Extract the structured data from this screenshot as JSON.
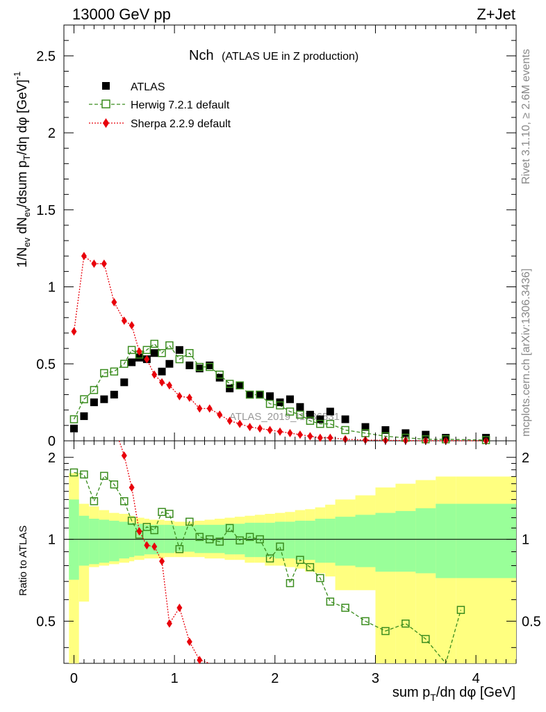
{
  "header": {
    "left": "13000 GeV pp",
    "right": "Z+Jet"
  },
  "plot_title": {
    "main": "Nch",
    "sub": "(ATLAS UE in Z production)"
  },
  "side_labels": {
    "top": "Rivet 3.1.10, ≥ 2.6M events",
    "bottom": "mcplots.cern.ch [arXiv:1306.3436]"
  },
  "watermark": "ATLAS_2019_I1736531",
  "axes": {
    "ylabel_main": "1/N_ev dN_ev/dsum p_T/dη dφ [GeV]^-1",
    "ylabel_ratio": "Ratio to ATLAS",
    "xlabel": "sum p_T/dη dφ [GeV]",
    "x_ticks": [
      "0",
      "1",
      "2",
      "3",
      "4"
    ],
    "y_ticks_main": [
      "0",
      "0.5",
      "1",
      "1.5",
      "2",
      "2.5"
    ],
    "y_ticks_ratio": [
      "0.5",
      "1",
      "2"
    ]
  },
  "legend": {
    "atlas": "ATLAS",
    "herwig": "Herwig 7.2.1 default",
    "sherpa": "Sherpa 2.2.9 default"
  },
  "colors": {
    "atlas": "#000000",
    "herwig": "#3a8c1e",
    "sherpa": "#e8000b",
    "band_inner": "#99ff99",
    "band_outer": "#ffff80"
  },
  "chart_data": [
    {
      "type": "scatter",
      "panel": "main",
      "xlim": [
        -0.1,
        4.4
      ],
      "ylim": [
        0,
        2.7
      ],
      "series": [
        {
          "name": "ATLAS",
          "x": [
            0.0,
            0.1,
            0.2,
            0.3,
            0.4,
            0.5,
            0.575,
            0.65,
            0.725,
            0.8,
            0.875,
            0.95,
            1.05,
            1.15,
            1.25,
            1.35,
            1.45,
            1.55,
            1.65,
            1.75,
            1.85,
            1.95,
            2.05,
            2.15,
            2.25,
            2.35,
            2.45,
            2.55,
            2.7,
            2.9,
            3.1,
            3.3,
            3.5,
            3.7,
            4.1
          ],
          "y": [
            0.08,
            0.16,
            0.25,
            0.27,
            0.3,
            0.38,
            0.51,
            0.54,
            0.53,
            0.57,
            0.45,
            0.5,
            0.59,
            0.49,
            0.47,
            0.49,
            0.41,
            0.34,
            0.36,
            0.3,
            0.3,
            0.29,
            0.25,
            0.27,
            0.22,
            0.17,
            0.14,
            0.19,
            0.14,
            0.09,
            0.07,
            0.05,
            0.04,
            0.02,
            0.02
          ]
        },
        {
          "name": "Herwig 7.2.1 default",
          "x": [
            0.0,
            0.1,
            0.2,
            0.3,
            0.4,
            0.5,
            0.575,
            0.65,
            0.725,
            0.8,
            0.875,
            0.95,
            1.05,
            1.15,
            1.25,
            1.35,
            1.45,
            1.55,
            1.65,
            1.75,
            1.85,
            1.95,
            2.05,
            2.15,
            2.25,
            2.35,
            2.45,
            2.55,
            2.7,
            2.9,
            3.1,
            3.3,
            3.5,
            3.7,
            4.1
          ],
          "y": [
            0.14,
            0.27,
            0.33,
            0.44,
            0.45,
            0.5,
            0.59,
            0.56,
            0.59,
            0.63,
            0.57,
            0.62,
            0.53,
            0.57,
            0.48,
            0.48,
            0.43,
            0.37,
            0.36,
            0.3,
            0.3,
            0.24,
            0.23,
            0.19,
            0.17,
            0.13,
            0.11,
            0.11,
            0.07,
            0.05,
            0.03,
            0.02,
            0.01,
            0.01,
            0.005
          ]
        },
        {
          "name": "Sherpa 2.2.9 default",
          "x": [
            0.0,
            0.1,
            0.2,
            0.3,
            0.4,
            0.5,
            0.575,
            0.65,
            0.725,
            0.8,
            0.875,
            0.95,
            1.05,
            1.15,
            1.25,
            1.35,
            1.45,
            1.55,
            1.65,
            1.75,
            1.85,
            1.95,
            2.05,
            2.15,
            2.25,
            2.35,
            2.45,
            2.55,
            2.7,
            2.9,
            3.1,
            3.3,
            3.5,
            3.7,
            4.1
          ],
          "y": [
            0.71,
            1.2,
            1.15,
            1.15,
            0.9,
            0.78,
            0.75,
            0.58,
            0.53,
            0.43,
            0.38,
            0.36,
            0.29,
            0.28,
            0.21,
            0.21,
            0.17,
            0.13,
            0.11,
            0.09,
            0.08,
            0.07,
            0.06,
            0.05,
            0.04,
            0.03,
            0.02,
            0.02,
            0.01,
            0.005,
            0.003,
            0.002,
            0.001,
            0.001,
            0.0005
          ]
        }
      ]
    },
    {
      "type": "line",
      "panel": "ratio",
      "xlim": [
        -0.1,
        4.4
      ],
      "ylim": [
        0.35,
        2.3
      ],
      "y_scale": "log",
      "bands": {
        "x_edges": [
          -0.05,
          0.05,
          0.15,
          0.25,
          0.35,
          0.45,
          0.55,
          0.6,
          0.7,
          0.75,
          0.85,
          0.9,
          1.0,
          1.1,
          1.2,
          1.3,
          1.4,
          1.5,
          1.6,
          1.7,
          1.8,
          1.9,
          2.0,
          2.1,
          2.2,
          2.3,
          2.4,
          2.5,
          2.6,
          2.8,
          3.0,
          3.2,
          3.4,
          3.6,
          3.8,
          4.4
        ],
        "inner_low": [
          0.71,
          0.8,
          0.81,
          0.82,
          0.83,
          0.85,
          0.86,
          0.87,
          0.88,
          0.88,
          0.89,
          0.89,
          0.9,
          0.9,
          0.89,
          0.89,
          0.89,
          0.88,
          0.88,
          0.86,
          0.86,
          0.86,
          0.85,
          0.85,
          0.84,
          0.84,
          0.82,
          0.82,
          0.8,
          0.79,
          0.76,
          0.76,
          0.75,
          0.72,
          0.72
        ],
        "inner_high": [
          1.4,
          1.22,
          1.19,
          1.18,
          1.17,
          1.16,
          1.15,
          1.14,
          1.13,
          1.13,
          1.13,
          1.13,
          1.12,
          1.12,
          1.13,
          1.13,
          1.13,
          1.14,
          1.14,
          1.15,
          1.15,
          1.15,
          1.16,
          1.16,
          1.17,
          1.17,
          1.19,
          1.19,
          1.21,
          1.23,
          1.25,
          1.27,
          1.3,
          1.35,
          1.35
        ],
        "outer_low": [
          0.35,
          0.59,
          0.79,
          0.8,
          0.81,
          0.82,
          0.83,
          0.84,
          0.85,
          0.85,
          0.85,
          0.86,
          0.86,
          0.86,
          0.86,
          0.85,
          0.85,
          0.84,
          0.84,
          0.82,
          0.82,
          0.8,
          0.8,
          0.79,
          0.78,
          0.76,
          0.75,
          0.73,
          0.65,
          0.65,
          0.35,
          0.35,
          0.35,
          0.35,
          0.35
        ],
        "outer_high": [
          1.75,
          1.35,
          1.32,
          1.28,
          1.25,
          1.24,
          1.22,
          1.2,
          1.19,
          1.18,
          1.18,
          1.17,
          1.16,
          1.16,
          1.17,
          1.18,
          1.19,
          1.2,
          1.21,
          1.22,
          1.23,
          1.24,
          1.25,
          1.26,
          1.28,
          1.29,
          1.31,
          1.34,
          1.4,
          1.45,
          1.55,
          1.6,
          1.65,
          1.7,
          1.7
        ]
      },
      "series": [
        {
          "name": "Herwig 7.2.1 default",
          "x": [
            0.0,
            0.1,
            0.2,
            0.3,
            0.4,
            0.5,
            0.575,
            0.65,
            0.725,
            0.8,
            0.875,
            0.95,
            1.05,
            1.15,
            1.25,
            1.35,
            1.45,
            1.55,
            1.65,
            1.75,
            1.85,
            1.95,
            2.05,
            2.15,
            2.25,
            2.35,
            2.45,
            2.55,
            2.7,
            2.9,
            3.1,
            3.3,
            3.5,
            3.7,
            3.85
          ],
          "y": [
            1.76,
            1.73,
            1.38,
            1.71,
            1.59,
            1.38,
            1.17,
            1.04,
            1.11,
            1.08,
            1.26,
            1.24,
            0.92,
            1.16,
            1.02,
            1.0,
            0.98,
            1.1,
            0.99,
            1.02,
            1.0,
            0.85,
            0.94,
            0.69,
            0.84,
            0.79,
            0.72,
            0.59,
            0.56,
            0.5,
            0.46,
            0.49,
            0.43,
            0.34,
            0.55
          ]
        },
        {
          "name": "Sherpa 2.2.9 default",
          "x": [
            0.45,
            0.5,
            0.575,
            0.65,
            0.725,
            0.8,
            0.875,
            0.95,
            1.05,
            1.15,
            1.25,
            1.35
          ],
          "y": [
            2.3,
            2.03,
            1.55,
            1.07,
            0.95,
            0.94,
            0.83,
            0.49,
            0.56,
            0.42,
            0.36,
            0.35
          ]
        }
      ]
    }
  ]
}
